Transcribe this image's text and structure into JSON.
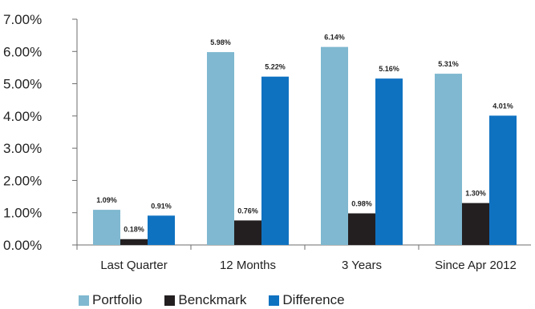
{
  "chart_data": {
    "type": "bar",
    "categories": [
      "Last Quarter",
      "12 Months",
      "3 Years",
      "Since Apr 2012"
    ],
    "series": [
      {
        "name": "Portfolio",
        "color": "#7fb8d0",
        "values": [
          1.09,
          5.98,
          6.14,
          5.31
        ],
        "labels": [
          "1.09%",
          "5.98%",
          "6.14%",
          "5.31%"
        ]
      },
      {
        "name": "Benckmark",
        "color": "#231f20",
        "values": [
          0.18,
          0.76,
          0.98,
          1.3
        ],
        "labels": [
          "0.18%",
          "0.76%",
          "0.98%",
          "1.30%"
        ]
      },
      {
        "name": "Difference",
        "color": "#0f72c1",
        "values": [
          0.91,
          5.22,
          5.16,
          4.01
        ],
        "labels": [
          "0.91%",
          "5.22%",
          "5.16%",
          "4.01%"
        ]
      }
    ],
    "yticks": [
      "0.00%",
      "1.00%",
      "2.00%",
      "3.00%",
      "4.00%",
      "5.00%",
      "6.00%",
      "7.00%"
    ],
    "ylim": [
      0,
      7
    ],
    "grid": false,
    "legend_position": "bottom-left",
    "title": "",
    "xlabel": "",
    "ylabel": ""
  }
}
